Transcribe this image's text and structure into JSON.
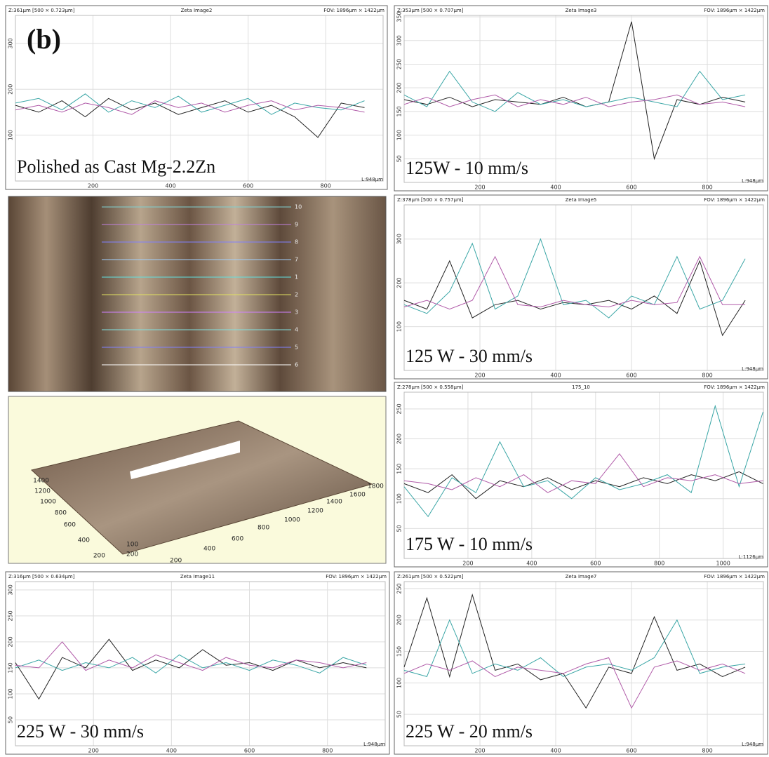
{
  "panel_label": "(b)",
  "chart_data": [
    {
      "type": "line",
      "header_left": "Z:361µm [500 × 0.723µm]",
      "title": "Zeta Image2",
      "header_right": "FOV: 1896µm × 1422µm",
      "length_label": "L:948µm",
      "annotation": "Polished as Cast Mg-2.2Zn",
      "grid": true,
      "xlim": [
        0,
        948
      ],
      "xticks": [
        200,
        400,
        600,
        800
      ],
      "ylim": [
        0,
        361
      ],
      "yticks": [
        100,
        200,
        300
      ],
      "x": [
        0,
        60,
        120,
        180,
        240,
        300,
        360,
        420,
        480,
        540,
        600,
        660,
        720,
        780,
        840,
        900
      ],
      "series": [
        {
          "color": "#222222",
          "values": [
            165,
            150,
            175,
            140,
            180,
            155,
            170,
            145,
            160,
            175,
            150,
            165,
            140,
            95,
            170,
            160
          ]
        },
        {
          "color": "#3aa6a6",
          "values": [
            170,
            180,
            155,
            190,
            150,
            175,
            160,
            185,
            150,
            165,
            180,
            145,
            170,
            160,
            155,
            175
          ]
        },
        {
          "color": "#b05aa8",
          "values": [
            155,
            165,
            150,
            170,
            160,
            145,
            175,
            160,
            170,
            150,
            165,
            175,
            155,
            165,
            160,
            150
          ]
        }
      ]
    },
    {
      "type": "line",
      "header_left": "Z:353µm [500 × 0.707µm]",
      "title": "Zeta Image3",
      "header_right": "FOV: 1896µm × 1422µm",
      "length_label": "L:948µm",
      "annotation": "125W - 10 mm/s",
      "grid": true,
      "xlim": [
        0,
        948
      ],
      "xticks": [
        200,
        400,
        600,
        800
      ],
      "ylim": [
        0,
        353
      ],
      "yticks": [
        50,
        100,
        150,
        200,
        250,
        300,
        350
      ],
      "x": [
        0,
        60,
        120,
        180,
        240,
        300,
        360,
        420,
        480,
        540,
        600,
        660,
        720,
        780,
        840,
        900
      ],
      "series": [
        {
          "color": "#222222",
          "values": [
            175,
            165,
            180,
            160,
            175,
            170,
            165,
            180,
            160,
            170,
            340,
            50,
            175,
            165,
            180,
            170
          ]
        },
        {
          "color": "#3aa6a6",
          "values": [
            185,
            160,
            235,
            170,
            150,
            190,
            165,
            175,
            160,
            170,
            180,
            170,
            160,
            235,
            175,
            185
          ]
        },
        {
          "color": "#b05aa8",
          "values": [
            165,
            180,
            160,
            175,
            185,
            160,
            175,
            165,
            180,
            160,
            170,
            175,
            185,
            165,
            170,
            160
          ]
        }
      ]
    },
    {
      "type": "line",
      "header_left": "Z:378µm [500 × 0.757µm]",
      "title": "Zeta Image5",
      "header_right": "FOV: 1896µm × 1422µm",
      "length_label": "L:948µm",
      "annotation": "125 W - 30 mm/s",
      "grid": true,
      "xlim": [
        0,
        948
      ],
      "xticks": [
        200,
        400,
        600,
        800
      ],
      "ylim": [
        0,
        378
      ],
      "yticks": [
        100,
        200,
        300
      ],
      "x": [
        0,
        60,
        120,
        180,
        240,
        300,
        360,
        420,
        480,
        540,
        600,
        660,
        720,
        780,
        840,
        900
      ],
      "series": [
        {
          "color": "#222222",
          "values": [
            160,
            140,
            250,
            120,
            150,
            160,
            140,
            155,
            150,
            160,
            140,
            170,
            130,
            250,
            80,
            160
          ]
        },
        {
          "color": "#3aa6a6",
          "values": [
            150,
            130,
            180,
            290,
            140,
            170,
            300,
            150,
            160,
            120,
            170,
            150,
            260,
            140,
            160,
            255
          ]
        },
        {
          "color": "#b05aa8",
          "values": [
            145,
            160,
            140,
            160,
            260,
            150,
            145,
            160,
            150,
            145,
            160,
            150,
            155,
            260,
            150,
            150
          ]
        }
      ]
    },
    {
      "type": "line",
      "header_left": "Z:278µm [500 × 0.558µm]",
      "title": "175_10",
      "header_right": "FOV: 1896µm × 1422µm",
      "length_label": "L:1126µm",
      "annotation": "175 W - 10 mm/s",
      "grid": true,
      "xlim": [
        0,
        1126
      ],
      "xticks": [
        200,
        400,
        600,
        800,
        1000
      ],
      "ylim": [
        0,
        278
      ],
      "yticks": [
        50,
        100,
        150,
        200,
        250
      ],
      "x": [
        0,
        75,
        150,
        225,
        300,
        375,
        450,
        525,
        600,
        675,
        750,
        825,
        900,
        975,
        1050,
        1125
      ],
      "series": [
        {
          "color": "#222222",
          "values": [
            125,
            110,
            140,
            100,
            130,
            120,
            135,
            115,
            130,
            120,
            135,
            125,
            140,
            130,
            145,
            125
          ]
        },
        {
          "color": "#3aa6a6",
          "values": [
            120,
            70,
            135,
            110,
            195,
            120,
            130,
            100,
            135,
            115,
            125,
            140,
            110,
            255,
            120,
            245
          ]
        },
        {
          "color": "#b05aa8",
          "values": [
            130,
            125,
            115,
            135,
            120,
            140,
            110,
            130,
            125,
            175,
            120,
            135,
            130,
            140,
            125,
            130
          ]
        }
      ]
    },
    {
      "type": "line",
      "header_left": "Z:316µm [500 × 0.634µm]",
      "title": "Zeta Image11",
      "header_right": "FOV: 1896µm × 1422µm",
      "length_label": "L:948µm",
      "annotation": "225 W - 30 mm/s",
      "grid": true,
      "xlim": [
        0,
        948
      ],
      "xticks": [
        200,
        400,
        600,
        800
      ],
      "ylim": [
        0,
        316
      ],
      "yticks": [
        50,
        100,
        150,
        200,
        250,
        300
      ],
      "x": [
        0,
        60,
        120,
        180,
        240,
        300,
        360,
        420,
        480,
        540,
        600,
        660,
        720,
        780,
        840,
        900
      ],
      "series": [
        {
          "color": "#222222",
          "values": [
            160,
            90,
            170,
            150,
            205,
            145,
            165,
            150,
            185,
            155,
            160,
            145,
            165,
            150,
            160,
            150
          ]
        },
        {
          "color": "#3aa6a6",
          "values": [
            150,
            165,
            145,
            160,
            150,
            170,
            140,
            175,
            150,
            160,
            145,
            165,
            155,
            140,
            170,
            155
          ]
        },
        {
          "color": "#b05aa8",
          "values": [
            155,
            150,
            200,
            145,
            165,
            150,
            175,
            160,
            145,
            170,
            155,
            150,
            165,
            160,
            150,
            160
          ]
        }
      ]
    },
    {
      "type": "line",
      "header_left": "Z:261µm [500 × 0.522µm]",
      "title": "Zeta Image7",
      "header_right": "FOV: 1896µm × 1422µm",
      "length_label": "L:948µm",
      "annotation": "225 W - 20 mm/s",
      "grid": true,
      "xlim": [
        0,
        948
      ],
      "xticks": [
        200,
        400,
        600,
        800
      ],
      "ylim": [
        0,
        261
      ],
      "yticks": [
        50,
        100,
        150,
        200,
        250
      ],
      "x": [
        0,
        60,
        120,
        180,
        240,
        300,
        360,
        420,
        480,
        540,
        600,
        660,
        720,
        780,
        840,
        900
      ],
      "series": [
        {
          "color": "#222222",
          "values": [
            125,
            235,
            110,
            240,
            120,
            130,
            105,
            115,
            60,
            125,
            115,
            205,
            120,
            130,
            110,
            125
          ]
        },
        {
          "color": "#3aa6a6",
          "values": [
            120,
            110,
            200,
            115,
            130,
            120,
            140,
            110,
            125,
            130,
            120,
            140,
            200,
            115,
            125,
            130
          ]
        },
        {
          "color": "#b05aa8",
          "values": [
            115,
            130,
            120,
            135,
            110,
            125,
            120,
            115,
            130,
            140,
            60,
            125,
            135,
            120,
            130,
            115
          ]
        }
      ]
    }
  ],
  "micrograph": {
    "line_labels": [
      "10",
      "9",
      "8",
      "7",
      "1",
      "2",
      "3",
      "4",
      "5",
      "6"
    ]
  },
  "surface_3d": {
    "depth_ticks": [
      1400,
      1200,
      1000,
      800,
      600,
      400,
      200
    ],
    "length_ticks": [
      200,
      400,
      600,
      800,
      1000,
      1200,
      1400,
      1600,
      1800
    ],
    "height_ticks": [
      100,
      200
    ]
  }
}
